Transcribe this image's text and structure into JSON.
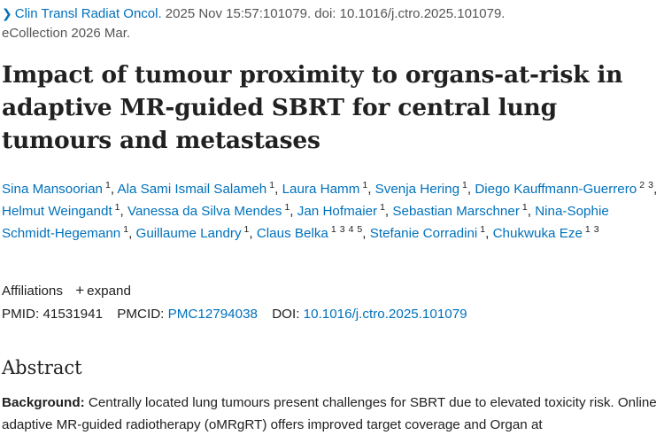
{
  "citation": {
    "journal": "Clin Transl Radiat Oncol.",
    "rest": " 2025 Nov 15:57:101079. doi: 10.1016/j.ctro.2025.101079.",
    "line2": "eCollection 2026 Mar."
  },
  "title": "Impact of tumour proximity to organs-at-risk in adaptive MR-guided SBRT for central lung tumours and metastases",
  "authors": [
    {
      "name": "Sina Mansoorian",
      "aff": [
        "1"
      ]
    },
    {
      "name": "Ala Sami Ismail Salameh",
      "aff": [
        "1"
      ]
    },
    {
      "name": "Laura Hamm",
      "aff": [
        "1"
      ]
    },
    {
      "name": "Svenja Hering",
      "aff": [
        "1"
      ]
    },
    {
      "name": "Diego Kauffmann-Guerrero",
      "aff": [
        "2",
        "3"
      ]
    },
    {
      "name": "Helmut Weingandt",
      "aff": [
        "1"
      ]
    },
    {
      "name": "Vanessa da Silva Mendes",
      "aff": [
        "1"
      ]
    },
    {
      "name": "Jan Hofmaier",
      "aff": [
        "1"
      ]
    },
    {
      "name": "Sebastian Marschner",
      "aff": [
        "1"
      ]
    },
    {
      "name": "Nina-Sophie Schmidt-Hegemann",
      "aff": [
        "1"
      ]
    },
    {
      "name": "Guillaume Landry",
      "aff": [
        "1"
      ]
    },
    {
      "name": "Claus Belka",
      "aff": [
        "1",
        "3",
        "4",
        "5"
      ]
    },
    {
      "name": "Stefanie Corradini",
      "aff": [
        "1"
      ]
    },
    {
      "name": "Chukwuka Eze",
      "aff": [
        "1",
        "3"
      ]
    }
  ],
  "affiliations": {
    "label": "Affiliations",
    "expand_label": "expand"
  },
  "ids": {
    "pmid_label": "PMID:",
    "pmid": "41531941",
    "pmcid_label": "PMCID:",
    "pmcid": "PMC12794038",
    "doi_label": "DOI:",
    "doi": "10.1016/j.ctro.2025.101079"
  },
  "abstract": {
    "heading": "Abstract",
    "background_label": "Background:",
    "background_text": " Centrally located lung tumours present challenges for SBRT due to elevated toxicity risk. Online adaptive MR-guided radiotherapy (oMRgRT) offers improved target coverage and Organ at"
  }
}
